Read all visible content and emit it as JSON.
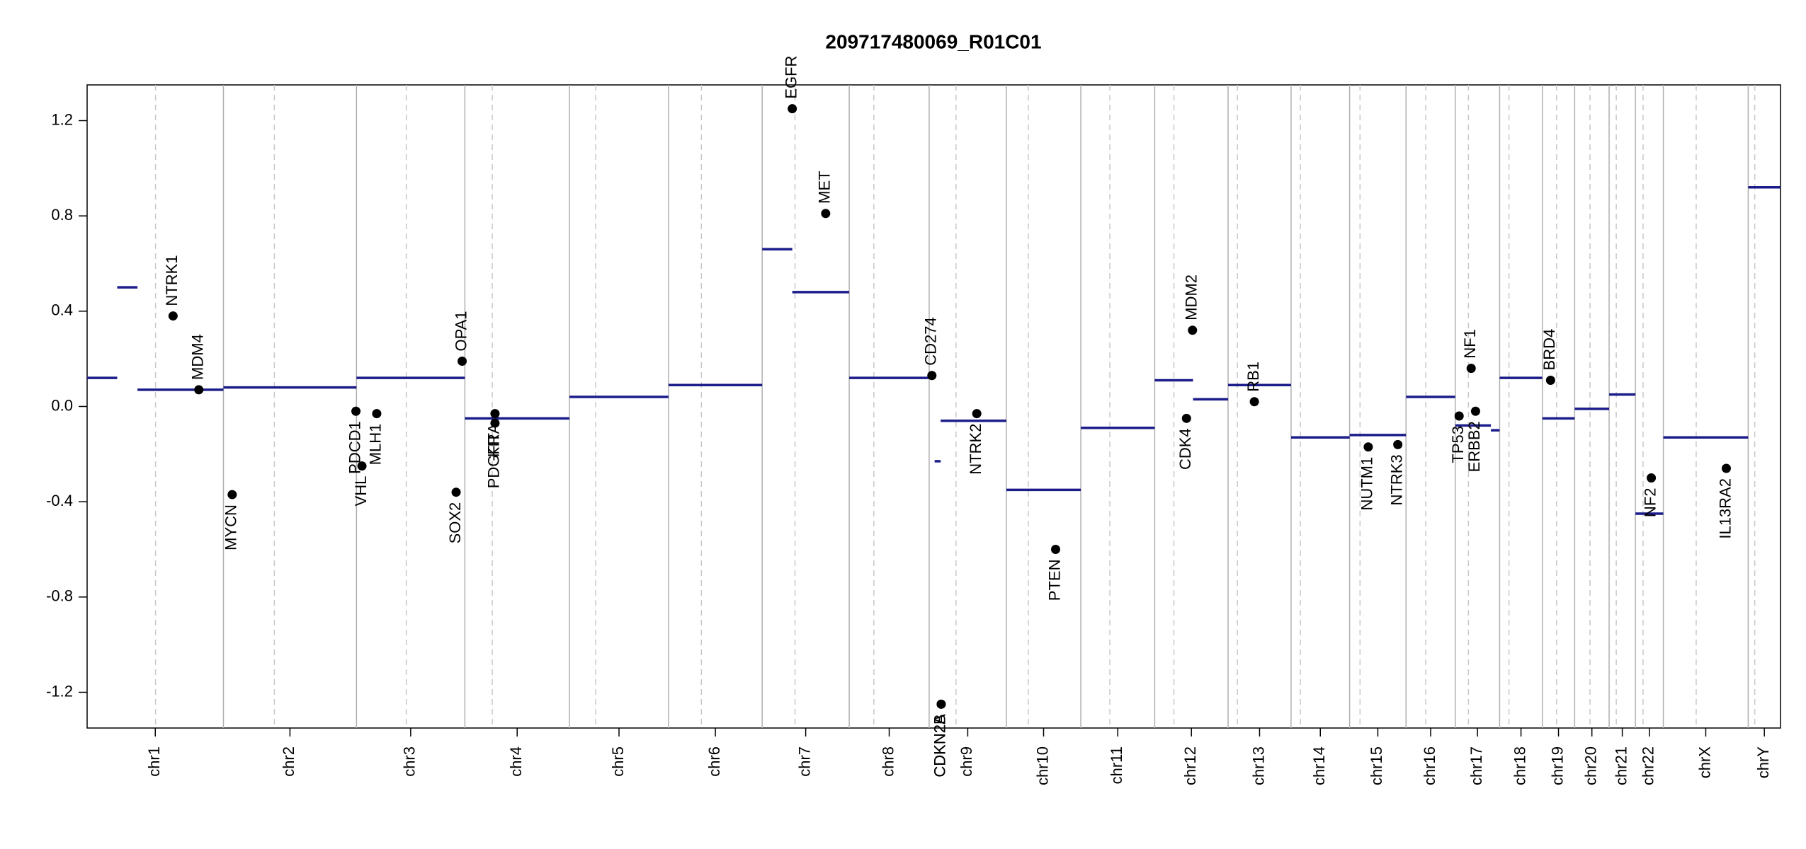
{
  "chart_data": {
    "type": "copy-number",
    "title": "209717480069_R01C01",
    "ylim": [
      -1.35,
      1.35
    ],
    "yticks": [
      -1.2,
      -0.8,
      -0.4,
      {
        "value": 0,
        "label": "0.0"
      },
      0.4,
      0.8,
      1.2
    ],
    "segment_color": "#1c1c8a",
    "gene_color": "#000000",
    "chromosomes": [
      {
        "name": "chr1",
        "length": 249,
        "centromere": 125
      },
      {
        "name": "chr2",
        "length": 243,
        "centromere": 93
      },
      {
        "name": "chr3",
        "length": 198,
        "centromere": 91
      },
      {
        "name": "chr4",
        "length": 191,
        "centromere": 50
      },
      {
        "name": "chr5",
        "length": 181,
        "centromere": 48
      },
      {
        "name": "chr6",
        "length": 171,
        "centromere": 60
      },
      {
        "name": "chr7",
        "length": 159,
        "centromere": 60
      },
      {
        "name": "chr8",
        "length": 146,
        "centromere": 45
      },
      {
        "name": "chr9",
        "length": 141,
        "centromere": 49
      },
      {
        "name": "chr10",
        "length": 136,
        "centromere": 40
      },
      {
        "name": "chr11",
        "length": 135,
        "centromere": 53
      },
      {
        "name": "chr12",
        "length": 134,
        "centromere": 35
      },
      {
        "name": "chr13",
        "length": 115,
        "centromere": 17
      },
      {
        "name": "chr14",
        "length": 107,
        "centromere": 17
      },
      {
        "name": "chr15",
        "length": 103,
        "centromere": 19
      },
      {
        "name": "chr16",
        "length": 90,
        "centromere": 36
      },
      {
        "name": "chr17",
        "length": 81,
        "centromere": 24
      },
      {
        "name": "chr18",
        "length": 78,
        "centromere": 17
      },
      {
        "name": "chr19",
        "length": 59,
        "centromere": 26
      },
      {
        "name": "chr20",
        "length": 63,
        "centromere": 28
      },
      {
        "name": "chr21",
        "length": 48,
        "centromere": 13
      },
      {
        "name": "chr22",
        "length": 51,
        "centromere": 14
      },
      {
        "name": "chrX",
        "length": 155,
        "centromere": 60
      },
      {
        "name": "chrY",
        "length": 59,
        "centromere": 12
      }
    ],
    "segments": [
      {
        "chrom": "chr1",
        "start": 0,
        "end": 55,
        "value": 0.12
      },
      {
        "chrom": "chr1",
        "start": 55,
        "end": 92,
        "value": 0.5
      },
      {
        "chrom": "chr1",
        "start": 92,
        "end": 249,
        "value": 0.07
      },
      {
        "chrom": "chr2",
        "start": 0,
        "end": 243,
        "value": 0.08
      },
      {
        "chrom": "chr3",
        "start": 0,
        "end": 198,
        "value": 0.12
      },
      {
        "chrom": "chr4",
        "start": 0,
        "end": 191,
        "value": -0.05
      },
      {
        "chrom": "chr5",
        "start": 0,
        "end": 181,
        "value": 0.04
      },
      {
        "chrom": "chr6",
        "start": 0,
        "end": 171,
        "value": 0.09
      },
      {
        "chrom": "chr7",
        "start": 0,
        "end": 55,
        "value": 0.66
      },
      {
        "chrom": "chr7",
        "start": 55,
        "end": 159,
        "value": 0.48
      },
      {
        "chrom": "chr8",
        "start": 0,
        "end": 146,
        "value": 0.12
      },
      {
        "chrom": "chr9",
        "start": 10,
        "end": 21,
        "value": -0.23
      },
      {
        "chrom": "chr9",
        "start": 21,
        "end": 141,
        "value": -0.06
      },
      {
        "chrom": "chr10",
        "start": 0,
        "end": 136,
        "value": -0.35
      },
      {
        "chrom": "chr11",
        "start": 0,
        "end": 135,
        "value": -0.09
      },
      {
        "chrom": "chr12",
        "start": 0,
        "end": 70,
        "value": 0.11
      },
      {
        "chrom": "chr12",
        "start": 70,
        "end": 134,
        "value": 0.03
      },
      {
        "chrom": "chr13",
        "start": 0,
        "end": 115,
        "value": 0.09
      },
      {
        "chrom": "chr14",
        "start": 0,
        "end": 107,
        "value": -0.13
      },
      {
        "chrom": "chr15",
        "start": 0,
        "end": 103,
        "value": -0.12
      },
      {
        "chrom": "chr16",
        "start": 0,
        "end": 90,
        "value": 0.04
      },
      {
        "chrom": "chr17",
        "start": 0,
        "end": 65,
        "value": -0.08
      },
      {
        "chrom": "chr17",
        "start": 65,
        "end": 81,
        "value": -0.1
      },
      {
        "chrom": "chr18",
        "start": 0,
        "end": 78,
        "value": 0.12
      },
      {
        "chrom": "chr19",
        "start": 0,
        "end": 59,
        "value": -0.05
      },
      {
        "chrom": "chr20",
        "start": 0,
        "end": 63,
        "value": -0.01
      },
      {
        "chrom": "chr21",
        "start": 0,
        "end": 48,
        "value": 0.05
      },
      {
        "chrom": "chr22",
        "start": 0,
        "end": 51,
        "value": -0.45
      },
      {
        "chrom": "chrX",
        "start": 0,
        "end": 155,
        "value": -0.13
      },
      {
        "chrom": "chrY",
        "start": 0,
        "end": 59,
        "value": 0.92
      }
    ],
    "genes": [
      {
        "name": "NTRK1",
        "chrom": "chr1",
        "pos": 157,
        "value": 0.38
      },
      {
        "name": "MDM4",
        "chrom": "chr1",
        "pos": 204,
        "value": 0.07
      },
      {
        "name": "MYCN",
        "chrom": "chr2",
        "pos": 16,
        "value": -0.37
      },
      {
        "name": "PDCD1",
        "chrom": "chr2",
        "pos": 242,
        "value": -0.02
      },
      {
        "name": "VHL",
        "chrom": "chr3",
        "pos": 10,
        "value": -0.25
      },
      {
        "name": "MLH1",
        "chrom": "chr3",
        "pos": 37,
        "value": -0.03
      },
      {
        "name": "SOX2",
        "chrom": "chr3",
        "pos": 182,
        "value": -0.36
      },
      {
        "name": "OPA1",
        "chrom": "chr3",
        "pos": 193,
        "value": 0.19
      },
      {
        "name": "PDGFRA",
        "chrom": "chr4",
        "pos": 55,
        "value": -0.03
      },
      {
        "name": "KIT",
        "chrom": "chr4",
        "pos": 55,
        "value": -0.07
      },
      {
        "name": "EGFR",
        "chrom": "chr7",
        "pos": 55,
        "value": 1.25
      },
      {
        "name": "MET",
        "chrom": "chr7",
        "pos": 116,
        "value": 0.81
      },
      {
        "name": "CD274",
        "chrom": "chr9",
        "pos": 5,
        "value": 0.13
      },
      {
        "name": "CDKN2A",
        "chrom": "chr9",
        "pos": 22,
        "value": -1.25
      },
      {
        "name": "CDKN2B",
        "chrom": "chr9",
        "pos": 22,
        "value": -1.25
      },
      {
        "name": "NTRK2",
        "chrom": "chr9",
        "pos": 87,
        "value": -0.03
      },
      {
        "name": "PTEN",
        "chrom": "chr10",
        "pos": 90,
        "value": -0.6
      },
      {
        "name": "CDK4",
        "chrom": "chr12",
        "pos": 58,
        "value": -0.05
      },
      {
        "name": "MDM2",
        "chrom": "chr12",
        "pos": 69,
        "value": 0.32
      },
      {
        "name": "RB1",
        "chrom": "chr13",
        "pos": 48,
        "value": 0.02
      },
      {
        "name": "NUTM1",
        "chrom": "chr15",
        "pos": 34,
        "value": -0.17
      },
      {
        "name": "NTRK3",
        "chrom": "chr15",
        "pos": 88,
        "value": -0.16
      },
      {
        "name": "TP53",
        "chrom": "chr17",
        "pos": 7,
        "value": -0.04
      },
      {
        "name": "NF1",
        "chrom": "chr17",
        "pos": 29,
        "value": 0.16
      },
      {
        "name": "ERBB2",
        "chrom": "chr17",
        "pos": 37,
        "value": -0.02
      },
      {
        "name": "BRD4",
        "chrom": "chr19",
        "pos": 15,
        "value": 0.11
      },
      {
        "name": "NF2",
        "chrom": "chr22",
        "pos": 29,
        "value": -0.3
      },
      {
        "name": "IL13RA2",
        "chrom": "chrX",
        "pos": 115,
        "value": -0.26
      }
    ]
  }
}
